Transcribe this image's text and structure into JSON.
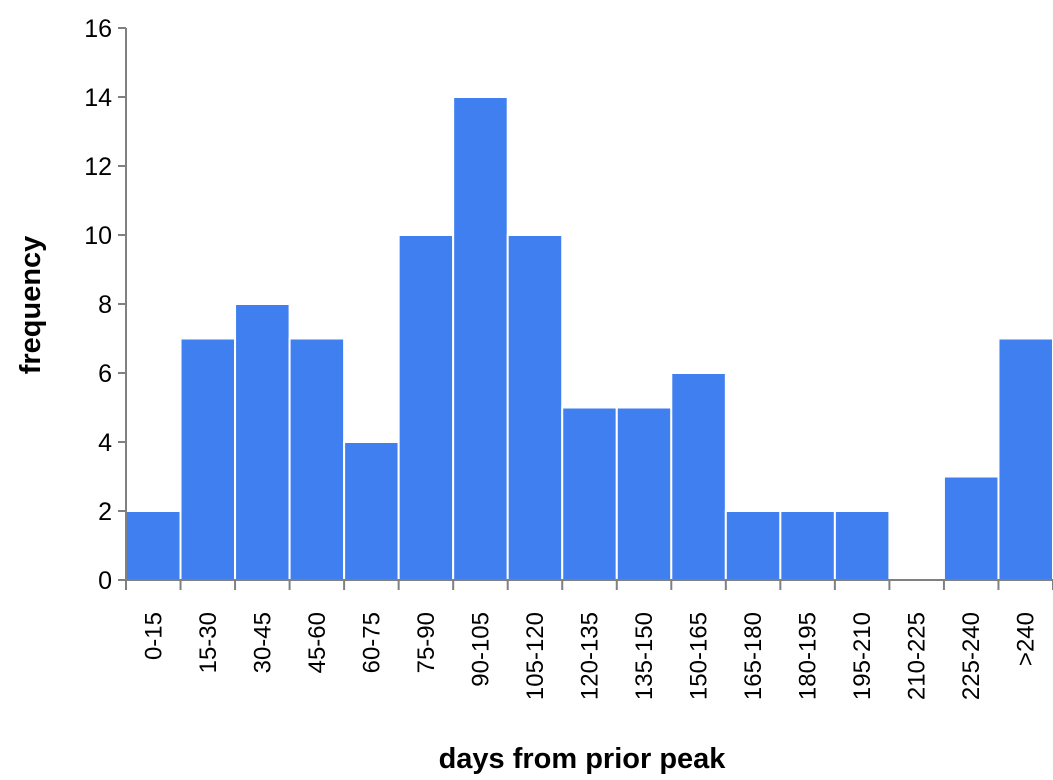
{
  "chart_data": {
    "type": "bar",
    "title": "",
    "xlabel": "days from prior peak",
    "ylabel": "frequency",
    "categories": [
      "0-15",
      "15-30",
      "30-45",
      "45-60",
      "60-75",
      "75-90",
      "90-105",
      "105-120",
      "120-135",
      "135-150",
      "150-165",
      "165-180",
      "180-195",
      "195-210",
      "210-225",
      "225-240",
      ">240"
    ],
    "values": [
      2,
      7,
      8,
      7,
      4,
      10,
      14,
      10,
      5,
      5,
      6,
      2,
      2,
      2,
      0,
      3,
      7
    ],
    "ylim": [
      0,
      16
    ],
    "yticks": [
      0,
      2,
      4,
      6,
      8,
      10,
      12,
      14,
      16
    ],
    "grid": false,
    "legend": "none",
    "bar_color": "#3f7ff0"
  }
}
